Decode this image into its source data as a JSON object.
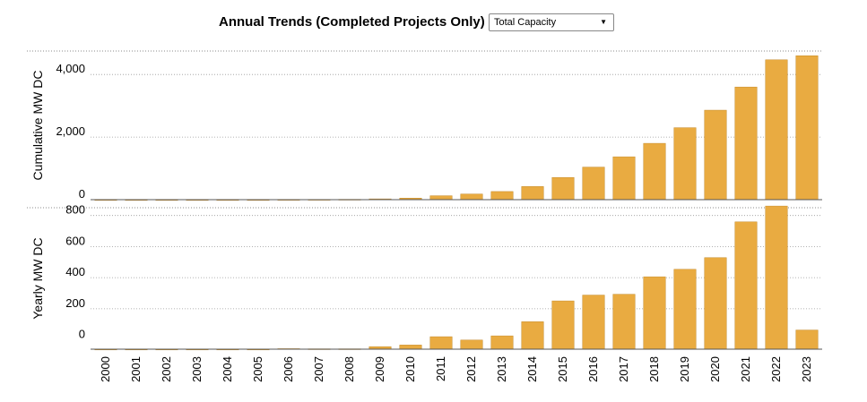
{
  "header": {
    "title": "Annual Trends (Completed Projects Only)",
    "dropdown": {
      "selected": "Total Capacity",
      "arrow_icon": "caret-down-icon"
    }
  },
  "chart_data": [
    {
      "type": "bar",
      "ylabel": "Cumulative MW DC",
      "yticks": [
        0,
        2000,
        4000
      ],
      "ytick_labels": [
        "0",
        "2,000",
        "4,000"
      ],
      "ylim": [
        0,
        4750
      ],
      "grid": true,
      "color": "#E9AB41",
      "categories": [
        "2000",
        "2001",
        "2002",
        "2003",
        "2004",
        "2005",
        "2006",
        "2007",
        "2008",
        "2009",
        "2010",
        "2011",
        "2012",
        "2013",
        "2014",
        "2015",
        "2016",
        "2017",
        "2018",
        "2019",
        "2020",
        "2021",
        "2022",
        "2023"
      ],
      "values": [
        0,
        0,
        0,
        0,
        0,
        0,
        4,
        6,
        10,
        25,
        50,
        125,
        180,
        260,
        420,
        710,
        1040,
        1370,
        1800,
        2300,
        2860,
        3600,
        4470,
        4600
      ]
    },
    {
      "type": "bar",
      "ylabel": "Yearly MW DC",
      "yticks": [
        0,
        200,
        400,
        600,
        800
      ],
      "ytick_labels": [
        "0",
        "200",
        "400",
        "600",
        "800"
      ],
      "ylim": [
        -60,
        850
      ],
      "grid": true,
      "color": "#E9AB41",
      "categories": [
        "2000",
        "2001",
        "2002",
        "2003",
        "2004",
        "2005",
        "2006",
        "2007",
        "2008",
        "2009",
        "2010",
        "2011",
        "2012",
        "2013",
        "2014",
        "2015",
        "2016",
        "2017",
        "2018",
        "2019",
        "2020",
        "2021",
        "2022",
        "2023"
      ],
      "values": [
        0,
        0,
        0,
        0,
        0,
        0,
        3,
        2,
        2,
        15,
        25,
        75,
        55,
        80,
        165,
        290,
        325,
        330,
        435,
        480,
        550,
        765,
        860,
        115
      ]
    }
  ]
}
